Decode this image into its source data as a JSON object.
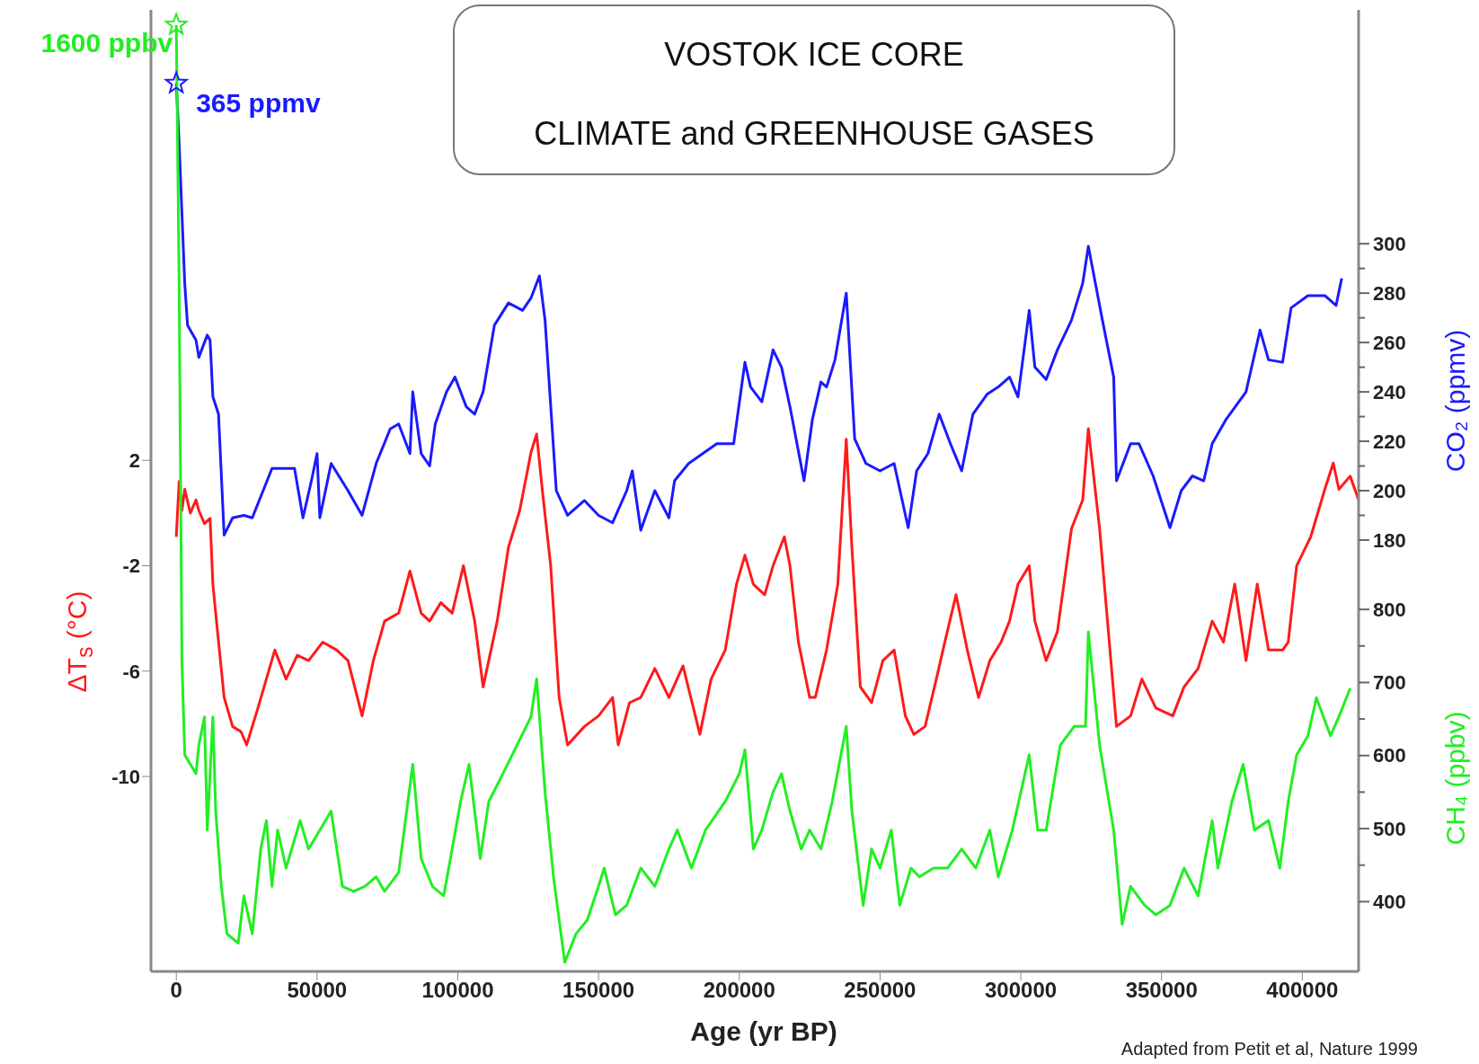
{
  "chart_data": {
    "type": "line",
    "title": "VOSTOK ICE CORE",
    "subtitle": "CLIMATE and GREENHOUSE GASES",
    "xlabel": "Age (yr BP)",
    "ylabel": "ΔT$_{s}$ (°C)",
    "y2label": "CO₂ (ppmv)",
    "y3label": "CH₄ (ppbv)",
    "xlim": [
      -9000,
      420000
    ],
    "xticks": [
      0,
      50000,
      100000,
      150000,
      200000,
      250000,
      300000,
      350000,
      400000
    ],
    "ylim": [
      -17.4,
      19.1
    ],
    "yticks": [
      -10,
      -6,
      -2,
      2
    ],
    "y2lim": [
      5.3,
      394.7
    ],
    "y2ticks": [
      180,
      {
        "value": 190,
        "label": null
      },
      200,
      {
        "value": 210,
        "label": null
      },
      220,
      {
        "value": 230,
        "label": null
      },
      240,
      {
        "value": 250,
        "label": null
      },
      260,
      {
        "value": 270,
        "label": null
      },
      280,
      {
        "value": 290,
        "label": null
      },
      300
    ],
    "y3lim": [
      304.5,
      1620.6
    ],
    "y3ticks": [
      400,
      {
        "value": 450,
        "label": null
      },
      500,
      {
        "value": 550,
        "label": null
      },
      600,
      {
        "value": 650,
        "label": null
      },
      700,
      {
        "value": 750,
        "label": null
      },
      800
    ],
    "grid": false,
    "legend": false,
    "line_style": "solid",
    "series": [
      {
        "color": "#1a1aff",
        "axis": "y2",
        "x": [
          0,
          1000,
          3000,
          4000,
          7000,
          8000,
          11000,
          12000,
          13000,
          15000,
          17000,
          20000,
          24000,
          27000,
          34000,
          42000,
          45000,
          48000,
          50000,
          51000,
          55000,
          61000,
          66000,
          71000,
          76000,
          79000,
          83000,
          84000,
          87000,
          90000,
          92000,
          96000,
          99000,
          103000,
          106000,
          109000,
          113000,
          118000,
          123000,
          126000,
          129000,
          131000,
          135000,
          139000,
          145000,
          150000,
          155000,
          160000,
          162000,
          165000,
          170000,
          175000,
          177000,
          182000,
          187000,
          192000,
          198000,
          202000,
          204000,
          208000,
          212000,
          215000,
          218000,
          223000,
          226000,
          229000,
          231000,
          234000,
          238000,
          241000,
          245000,
          250000,
          255000,
          260000,
          263000,
          267000,
          271000,
          275000,
          279000,
          283000,
          288000,
          292000,
          296000,
          299000,
          303000,
          305000,
          309000,
          313000,
          318000,
          322000,
          324000,
          329000,
          333000,
          334000,
          339000,
          342000,
          347000,
          353000,
          357000,
          361000,
          365000,
          368000,
          373000,
          380000,
          385000,
          388000,
          393000,
          396000,
          402000,
          408000,
          412000,
          414000
        ],
        "values": [
          365,
          341,
          284,
          267,
          261,
          254,
          263,
          261,
          238,
          231,
          182,
          189,
          190,
          189,
          209,
          209,
          189,
          204,
          215,
          189,
          211,
          200,
          190,
          211,
          225,
          227,
          215,
          240,
          215,
          210,
          227,
          240,
          246,
          234,
          231,
          240,
          267,
          276,
          273,
          278,
          287,
          269,
          200,
          190,
          196,
          190,
          187,
          200,
          208,
          184,
          200,
          189,
          204,
          211,
          215,
          219,
          219,
          252,
          242,
          236,
          257,
          250,
          234,
          204,
          229,
          244,
          242,
          253,
          280,
          221,
          211,
          208,
          211,
          185,
          208,
          215,
          231,
          219,
          208,
          231,
          239,
          242,
          246,
          238,
          273,
          250,
          245,
          257,
          269,
          284,
          299,
          269,
          246,
          204,
          219,
          219,
          206,
          185,
          200,
          206,
          204,
          219,
          229,
          240,
          265,
          253,
          252,
          274,
          279,
          279,
          275,
          286
        ]
      },
      {
        "color": "#ff1a1a",
        "x": [
          0,
          1000,
          2000,
          3000,
          5000,
          7000,
          8000,
          10000,
          12000,
          13000,
          14000,
          17000,
          20000,
          23000,
          25000,
          29000,
          32000,
          35000,
          39000,
          43000,
          47000,
          52000,
          57000,
          61000,
          66000,
          70000,
          74000,
          79000,
          83000,
          87000,
          90000,
          94000,
          98000,
          102000,
          106000,
          109000,
          114000,
          118000,
          122000,
          126000,
          128000,
          130000,
          133000,
          136000,
          139000,
          145000,
          150000,
          155000,
          157000,
          161000,
          165000,
          170000,
          175000,
          180000,
          186000,
          190000,
          195000,
          199000,
          202000,
          205000,
          209000,
          212000,
          216000,
          218000,
          221000,
          225000,
          227000,
          231000,
          235000,
          238000,
          240000,
          243000,
          247000,
          251000,
          255000,
          259000,
          262000,
          266000,
          270000,
          273000,
          277000,
          281000,
          285000,
          289000,
          293000,
          296000,
          299000,
          303000,
          305000,
          309000,
          313000,
          318000,
          322000,
          324000,
          328000,
          332000,
          334000,
          339000,
          343000,
          348000,
          354000,
          358000,
          363000,
          368000,
          372000,
          376000,
          380000,
          384000,
          388000,
          393000,
          395000,
          398000,
          403000,
          408000,
          411000,
          413000,
          417000,
          420000
        ],
        "values": [
          -0.9,
          1.2,
          0.1,
          0.9,
          0,
          0.5,
          0.1,
          -0.4,
          -0.2,
          -2.7,
          -3.8,
          -7.0,
          -8.1,
          -8.3,
          -8.8,
          -7.4,
          -6.3,
          -5.2,
          -6.3,
          -5.4,
          -5.6,
          -4.9,
          -5.2,
          -5.6,
          -7.7,
          -5.6,
          -4.1,
          -3.8,
          -2.2,
          -3.8,
          -4.1,
          -3.4,
          -3.8,
          -2.0,
          -4.1,
          -6.6,
          -4.1,
          -1.3,
          0.1,
          2.3,
          3.0,
          0.9,
          -2.0,
          -7.0,
          -8.8,
          -8.1,
          -7.7,
          -7.0,
          -8.8,
          -7.2,
          -7.0,
          -5.9,
          -7.0,
          -5.8,
          -8.4,
          -6.3,
          -5.2,
          -2.7,
          -1.6,
          -2.7,
          -3.1,
          -2.0,
          -0.9,
          -2.0,
          -4.9,
          -7.0,
          -7.0,
          -5.2,
          -2.7,
          2.8,
          -1.3,
          -6.6,
          -7.2,
          -5.6,
          -5.2,
          -7.7,
          -8.4,
          -8.1,
          -6.3,
          -4.9,
          -3.1,
          -5.2,
          -7.0,
          -5.6,
          -4.9,
          -4.1,
          -2.7,
          -2.0,
          -4.1,
          -5.6,
          -4.5,
          -0.6,
          0.5,
          3.2,
          -0.6,
          -5.6,
          -8.1,
          -7.7,
          -6.3,
          -7.4,
          -7.7,
          -6.6,
          -5.9,
          -4.1,
          -4.9,
          -2.7,
          -5.6,
          -2.7,
          -5.2,
          -5.2,
          -4.9,
          -2.0,
          -0.9,
          0.9,
          1.9,
          0.9,
          1.4,
          0.5
        ]
      },
      {
        "color": "#22ee22",
        "axis": "y3",
        "x": [
          0,
          1000,
          2000,
          3000,
          5000,
          7000,
          8000,
          10000,
          11000,
          13000,
          14000,
          16000,
          18000,
          22000,
          24000,
          27000,
          30000,
          32000,
          34000,
          36000,
          39000,
          42000,
          44000,
          47000,
          51000,
          55000,
          59000,
          63000,
          67000,
          71000,
          74000,
          79000,
          84000,
          87000,
          91000,
          95000,
          98000,
          101000,
          104000,
          108000,
          111000,
          116000,
          121000,
          126000,
          128000,
          131000,
          134000,
          138000,
          142000,
          146000,
          150000,
          152000,
          156000,
          160000,
          165000,
          170000,
          175000,
          178000,
          183000,
          188000,
          195000,
          200000,
          202000,
          205000,
          208000,
          212000,
          215000,
          218000,
          222000,
          225000,
          229000,
          233000,
          238000,
          240000,
          244000,
          247000,
          250000,
          254000,
          257000,
          261000,
          264000,
          269000,
          274000,
          279000,
          284000,
          289000,
          292000,
          297000,
          303000,
          306000,
          309000,
          314000,
          319000,
          323000,
          324000,
          328000,
          333000,
          336000,
          339000,
          344000,
          348000,
          353000,
          358000,
          363000,
          368000,
          370000,
          375000,
          379000,
          383000,
          388000,
          392000,
          395000,
          398000,
          402000,
          405000,
          410000,
          413000,
          417000
        ],
        "values": [
          1600,
          1246,
          730,
          601,
          588,
          575,
          614,
          653,
          498,
          653,
          524,
          421,
          356,
          343,
          408,
          356,
          472,
          511,
          421,
          498,
          446,
          485,
          511,
          472,
          498,
          524,
          421,
          414,
          421,
          434,
          414,
          440,
          588,
          459,
          421,
          408,
          472,
          537,
          588,
          459,
          537,
          575,
          614,
          653,
          705,
          550,
          434,
          317,
          356,
          375,
          421,
          446,
          382,
          395,
          446,
          421,
          472,
          498,
          446,
          498,
          537,
          575,
          608,
          472,
          498,
          550,
          575,
          524,
          472,
          498,
          472,
          537,
          640,
          524,
          395,
          472,
          446,
          498,
          395,
          446,
          434,
          446,
          446,
          472,
          446,
          498,
          434,
          498,
          601,
          498,
          498,
          614,
          640,
          640,
          769,
          614,
          498,
          369,
          421,
          395,
          382,
          395,
          446,
          408,
          511,
          446,
          537,
          588,
          498,
          511,
          446,
          537,
          601,
          627,
          679,
          627,
          653,
          692
        ]
      }
    ],
    "annotations": [
      "1600 ppbv",
      "365 ppmv",
      "Adapted from Petit et al, Nature 1999"
    ]
  }
}
